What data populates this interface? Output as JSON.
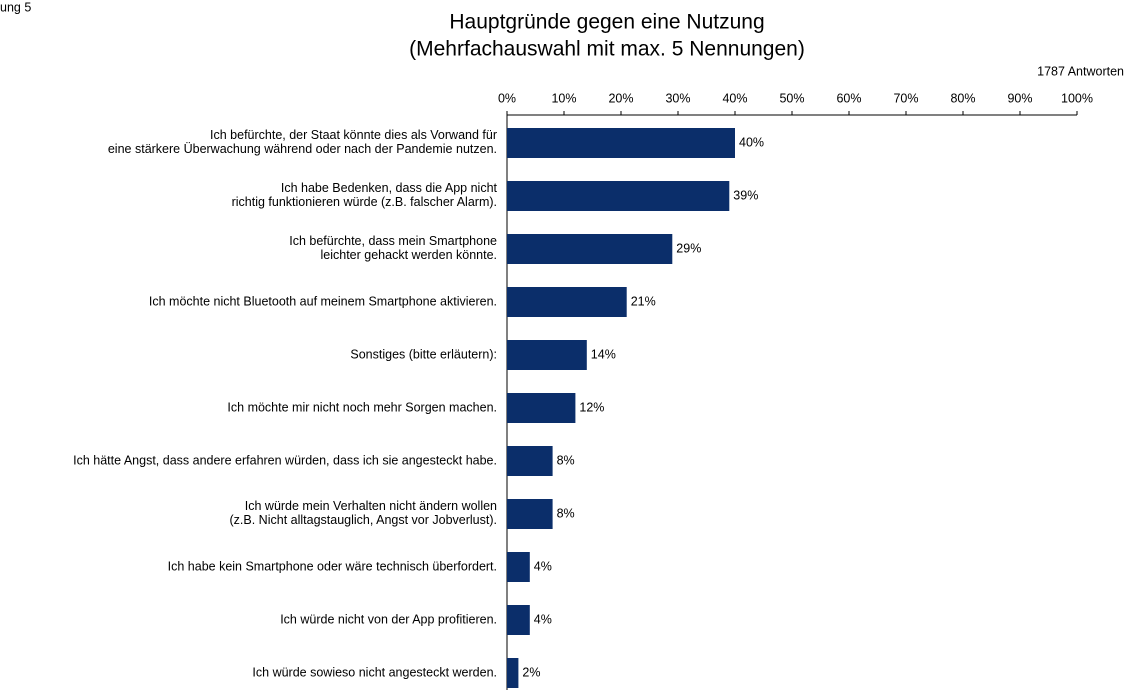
{
  "caption": "ung 5",
  "chart_data": {
    "type": "barh",
    "title": "Hauptgründe gegen eine Nutzung\n(Mehrfachauswahl mit max. 5 Nennungen)",
    "subtitle": "1787 Antworten",
    "categories": [
      "Ich befürchte, der Staat könnte dies als Vorwand für\neine stärkere Überwachung während oder nach der Pandemie nutzen.",
      "Ich habe Bedenken, dass die App nicht\nrichtig funktionieren würde (z.B. falscher Alarm).",
      "Ich befürchte, dass mein Smartphone\nleichter gehackt werden könnte.",
      "Ich möchte nicht Bluetooth auf meinem Smartphone aktivieren.",
      "Sonstiges (bitte erläutern):",
      "Ich möchte mir nicht noch mehr Sorgen machen.",
      "Ich hätte Angst, dass andere erfahren würden, dass ich sie angesteckt habe.",
      "Ich würde mein Verhalten nicht ändern wollen\n(z.B. Nicht alltagstauglich, Angst vor Jobverlust).",
      "Ich habe kein Smartphone oder wäre technisch überfordert.",
      "Ich würde nicht von der App profitieren.",
      "Ich würde sowieso nicht angesteckt werden."
    ],
    "values": [
      40,
      39,
      29,
      21,
      14,
      12,
      8,
      8,
      4,
      4,
      2
    ],
    "value_labels": [
      "40%",
      "39%",
      "29%",
      "21%",
      "14%",
      "12%",
      "8%",
      "8%",
      "4%",
      "4%",
      "2%"
    ],
    "color": "#0b2e6a",
    "xlim": [
      0,
      100
    ],
    "xticks": [
      {
        "value": 0,
        "label": "0%"
      },
      {
        "value": 10,
        "label": "10%"
      },
      {
        "value": 20,
        "label": "20%"
      },
      {
        "value": 30,
        "label": "30%"
      },
      {
        "value": 40,
        "label": "40%"
      },
      {
        "value": 50,
        "label": "50%"
      },
      {
        "value": 60,
        "label": "60%"
      },
      {
        "value": 70,
        "label": "70%"
      },
      {
        "value": 80,
        "label": "80%"
      },
      {
        "value": 90,
        "label": "90%"
      },
      {
        "value": 100,
        "label": "100%"
      }
    ]
  }
}
